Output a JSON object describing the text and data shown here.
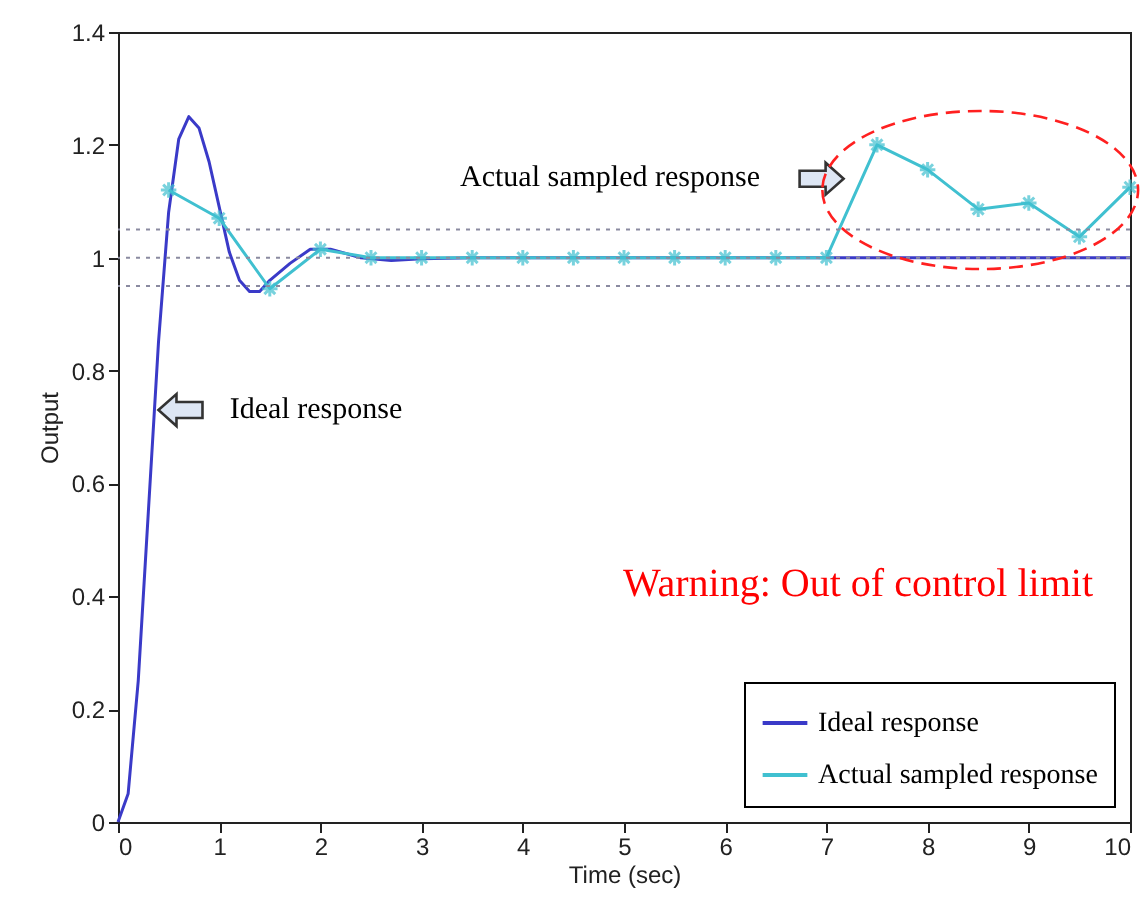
{
  "chart_data": {
    "type": "line",
    "xlabel": "Time (sec)",
    "ylabel": "Output",
    "xlim": [
      0,
      10
    ],
    "xticks": [
      0,
      1,
      2,
      3,
      4,
      5,
      6,
      7,
      8,
      9,
      10
    ],
    "ylim": [
      0,
      1.4
    ],
    "yticks": [
      0,
      0.2,
      0.4,
      0.6,
      0.8,
      1,
      1.2,
      1.4
    ],
    "grid": false,
    "legend": "bottom right",
    "series": [
      {
        "name": "Ideal response",
        "color": "#3a3ac8",
        "marker": "none",
        "x": [
          0,
          0.1,
          0.2,
          0.3,
          0.4,
          0.5,
          0.6,
          0.7,
          0.8,
          0.9,
          1.0,
          1.1,
          1.2,
          1.3,
          1.4,
          1.5,
          1.7,
          1.9,
          2.1,
          2.4,
          2.7,
          3,
          3.5,
          10
        ],
        "values": [
          0,
          0.05,
          0.25,
          0.55,
          0.85,
          1.08,
          1.21,
          1.25,
          1.23,
          1.17,
          1.09,
          1.01,
          0.96,
          0.94,
          0.94,
          0.96,
          0.99,
          1.015,
          1.015,
          1.0,
          0.995,
          0.998,
          1.0,
          1.0
        ]
      },
      {
        "name": "Actual sampled response",
        "color": "#40c0d0",
        "marker": "cross",
        "x": [
          0.5,
          1,
          1.5,
          2,
          2.5,
          3,
          3.5,
          4,
          4.5,
          5,
          5.5,
          6,
          6.5,
          7,
          7.5,
          8,
          8.5,
          9,
          9.5,
          10
        ],
        "values": [
          1.12,
          1.07,
          0.945,
          1.015,
          1.0,
          1.0,
          1.0,
          1.0,
          1.0,
          1.0,
          1.0,
          1.0,
          1.0,
          1.0,
          1.2,
          1.156,
          1.086,
          1.097,
          1.037,
          1.125
        ]
      }
    ],
    "ref_lines": [
      {
        "axis": "y",
        "value": 1.05,
        "color": "#8a8aa0",
        "line_style": "dotted"
      },
      {
        "axis": "y",
        "value": 1,
        "color": "#8a8aa0",
        "line_style": "dotted"
      },
      {
        "axis": "y",
        "value": 0.95,
        "color": "#8a8aa0",
        "line_style": "dotted"
      }
    ],
    "annotations": [
      "Actual sampled response",
      "Ideal response",
      "Warning: Out of control limit"
    ]
  }
}
